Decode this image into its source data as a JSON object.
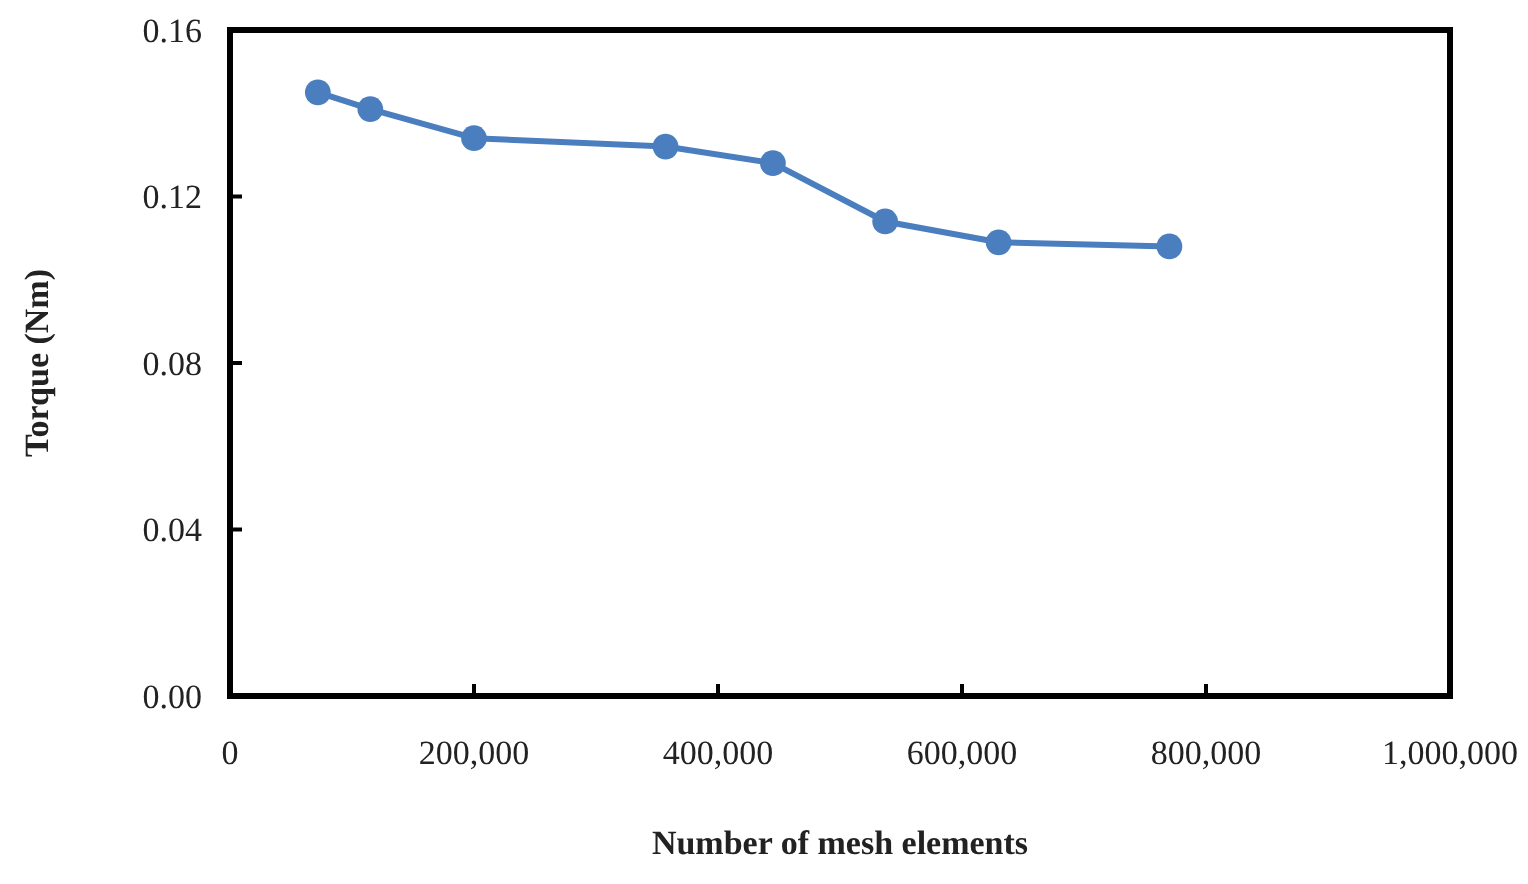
{
  "chart_data": {
    "type": "line",
    "xlabel": "Number of mesh elements",
    "ylabel": "Torque (Nm)",
    "xlim": [
      0,
      1000000
    ],
    "xticks": [
      {
        "value": 0,
        "label": "0"
      },
      {
        "value": 200000,
        "label": "200,000"
      },
      {
        "value": 400000,
        "label": "400,000"
      },
      {
        "value": 600000,
        "label": "600,000"
      },
      {
        "value": 800000,
        "label": "800,000"
      },
      {
        "value": 1000000,
        "label": "1,000,000"
      }
    ],
    "ylim": [
      0,
      0.16
    ],
    "yticks": [
      {
        "value": 0,
        "label": "0.00"
      },
      {
        "value": 0.04,
        "label": "0.04"
      },
      {
        "value": 0.08,
        "label": "0.08"
      },
      {
        "value": 0.12,
        "label": "0.12"
      },
      {
        "value": 0.16,
        "label": "0.16"
      }
    ],
    "grid": false,
    "marker": "circle",
    "line_style": "solid",
    "series": [
      {
        "color": "#4a7ebf",
        "x": [
          72000,
          115000,
          200000,
          357000,
          445000,
          537000,
          630000,
          770000
        ],
        "values": [
          0.145,
          0.141,
          0.134,
          0.132,
          0.128,
          0.114,
          0.109,
          0.108
        ]
      }
    ]
  }
}
